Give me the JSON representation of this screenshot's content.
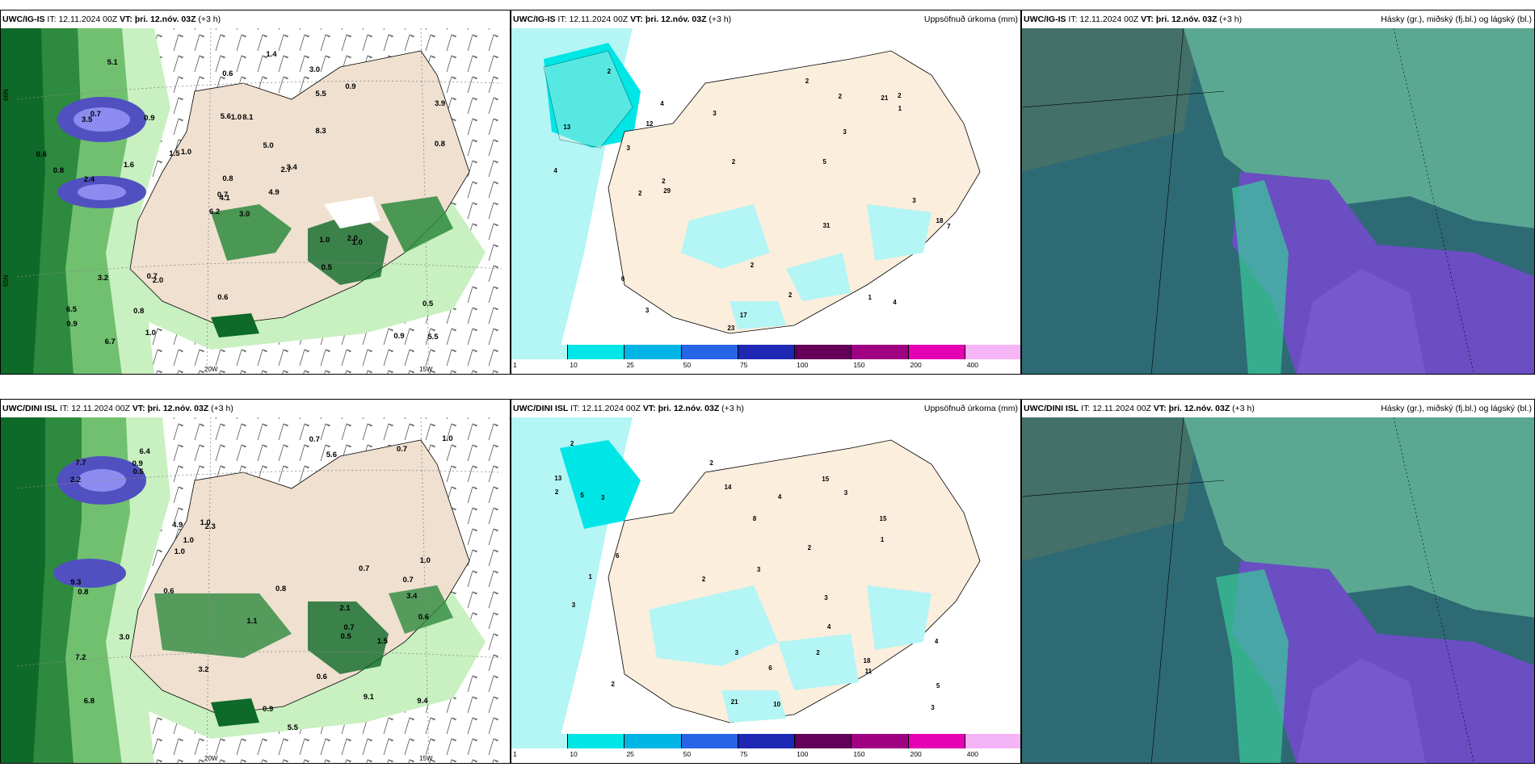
{
  "rows": [
    {
      "model": "UWC/IG-IS",
      "it_label": "IT:",
      "it_value": "12.11.2024 00Z",
      "vt_label": "VT:",
      "vt_value": "þri. 12.nóv. 03Z",
      "lead": "(+3 h)"
    },
    {
      "model": "UWC/DINI ISL",
      "it_label": "IT:",
      "it_value": "12.11.2024 00Z",
      "vt_label": "VT:",
      "vt_value": "þri. 12.nóv. 03Z",
      "lead": "(+3 h)"
    }
  ],
  "panel_titles": {
    "precip": "Uppsöfnuð úrkoma (mm)",
    "cloud": "Hásky (gr.), miðský (fj.bl.) og lágský (bl.)"
  },
  "axis_labels": {
    "lat65": "65N",
    "lat66": "66N",
    "lon20": "20W",
    "lon15": "15W"
  },
  "precip_legend": {
    "colors": [
      "#b4f5f5",
      "#00e6e6",
      "#00b4e6",
      "#2864e6",
      "#1e28b4",
      "#64005a",
      "#a00082",
      "#e600b4",
      "#f5b4f5"
    ],
    "labels": [
      "1",
      "10",
      "25",
      "50",
      "75",
      "100",
      "150",
      "200",
      "400"
    ]
  },
  "colors": {
    "land": "#fbeedd",
    "sea_precip": "#b4f5f5",
    "cloud_dark": "#2e6a74",
    "cloud_land": "#5aa892",
    "cloud_high": "#6a4ec2",
    "wind_green_light": "#c8f0c0",
    "wind_green_mid": "#70c070",
    "wind_green_dark": "#0e6a28"
  },
  "wind_values_top": [
    "3.0",
    "3.5",
    "4.1",
    "6.5",
    "2.7",
    "2.0",
    "3.0",
    "8.1",
    "5.5",
    "4.9",
    "5.1",
    "5.5",
    "2.4",
    "3.9",
    "6.2",
    "8.3",
    "6.7",
    "5.6",
    "5.0",
    "3.2",
    "1.0",
    "0.9",
    "0.8",
    "1.0",
    "3.4",
    "1.0",
    "0.7",
    "0.6",
    "0.8",
    "1.0",
    "0.8",
    "0.7",
    "0.6",
    "0.8",
    "0.9",
    "0.9",
    "0.7",
    "0.9",
    "0.5",
    "2.0",
    "1.4",
    "1.5",
    "1.6",
    "0.5",
    "1.0",
    "0.6"
  ],
  "wind_values_bottom": [
    "2.1",
    "3.4",
    "6.8",
    "6.4",
    "2.3",
    "9.1",
    "7.2",
    "5.6",
    "4.9",
    "5.5",
    "2.2",
    "9.3",
    "7.7",
    "9.4",
    "3.2",
    "1.0",
    "1.1",
    "0.8",
    "1.0",
    "3.0",
    "1.0",
    "0.7",
    "1.0",
    "0.6",
    "0.7",
    "0.9",
    "0.7",
    "0.8",
    "0.5",
    "0.7",
    "0.9",
    "0.6",
    "1.0",
    "0.6",
    "0.7",
    "1.5",
    "0.5"
  ],
  "precip_values_top": [
    "13",
    "12",
    "5",
    "17",
    "21",
    "23",
    "31",
    "29",
    "2",
    "7",
    "18",
    "4",
    "3",
    "6",
    "4",
    "3",
    "2",
    "3",
    "4",
    "2",
    "1",
    "3",
    "2",
    "2",
    "2",
    "3",
    "1",
    "2",
    "2",
    "2"
  ],
  "precip_values_bottom": [
    "8",
    "11",
    "13",
    "15",
    "21",
    "14",
    "10",
    "15",
    "6",
    "3",
    "18",
    "4",
    "3",
    "5",
    "5",
    "3",
    "4",
    "2",
    "6",
    "4",
    "2",
    "3",
    "2",
    "2",
    "1",
    "3",
    "2",
    "3",
    "3",
    "2",
    "2",
    "1"
  ]
}
